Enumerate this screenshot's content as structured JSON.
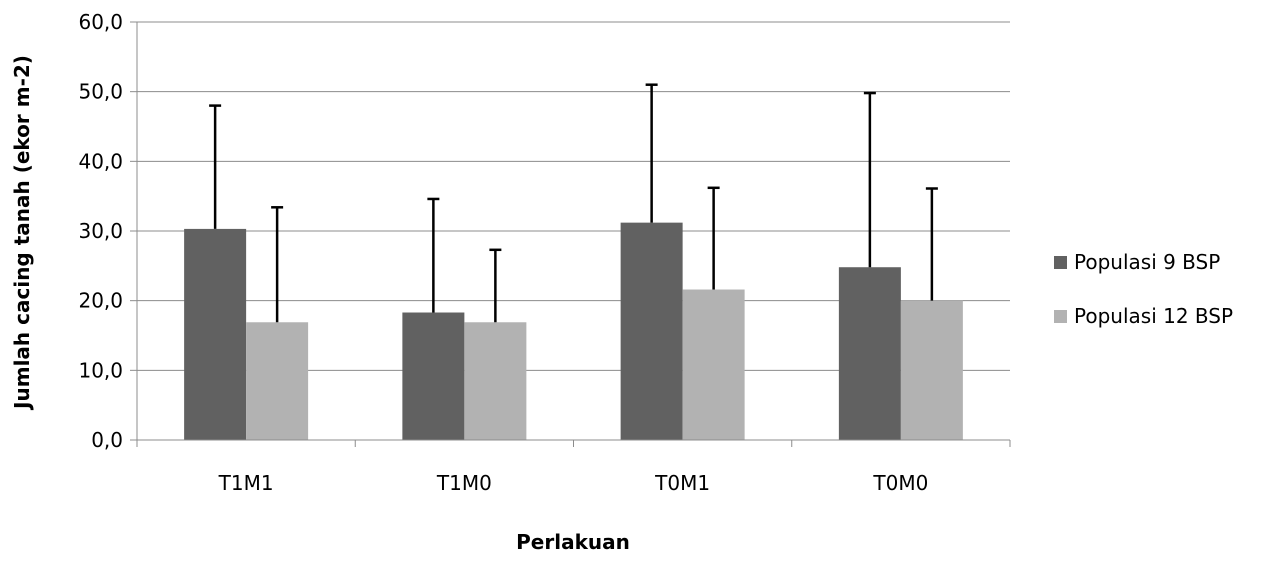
{
  "chart_data": {
    "type": "bar",
    "categories": [
      "T1M1",
      "T1M0",
      "T0M1",
      "T0M0"
    ],
    "series": [
      {
        "name": "Populasi 9 BSP",
        "values": [
          30.3,
          18.3,
          31.2,
          24.8
        ],
        "errors": [
          17.7,
          16.3,
          19.8,
          25.0
        ],
        "color": "#616161"
      },
      {
        "name": "Populasi 12 BSP",
        "values": [
          16.9,
          16.9,
          21.6,
          20.0
        ],
        "errors": [
          16.5,
          10.4,
          14.6,
          16.1
        ],
        "color": "#b2b2b2"
      }
    ],
    "xlabel": "Perlakuan",
    "ylabel": "Jumlah cacing tanah (ekor m-2)",
    "ylim": [
      0,
      60
    ],
    "yticks": [
      "0,0",
      "10,0",
      "20,0",
      "30,0",
      "40,0",
      "50,0",
      "60,0"
    ],
    "grid": true,
    "legend_position": "right",
    "error_bars": "upper"
  }
}
